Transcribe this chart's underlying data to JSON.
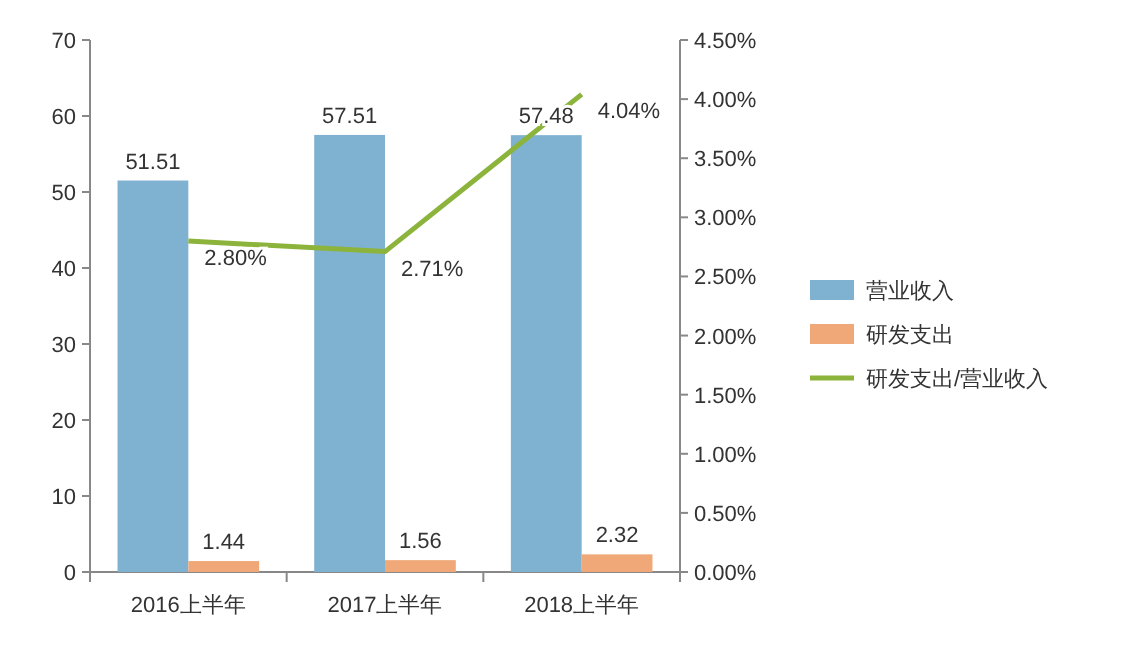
{
  "chart_data": {
    "type": "bar",
    "categories": [
      "2016上半年",
      "2017上半年",
      "2018上半年"
    ],
    "series": [
      {
        "name": "营业收入",
        "color": "#7fb2d1",
        "values": [
          51.51,
          57.51,
          57.48
        ],
        "value_labels": [
          "51.51",
          "57.51",
          "57.48"
        ]
      },
      {
        "name": "研发支出",
        "color": "#f0a878",
        "values": [
          1.44,
          1.56,
          2.32
        ],
        "value_labels": [
          "1.44",
          "1.56",
          "2.32"
        ]
      },
      {
        "name": "研发支出/营业收入",
        "type": "line",
        "axis": "y2",
        "color": "#8cb43c",
        "values": [
          2.8,
          2.71,
          4.04
        ],
        "value_labels": [
          "2.80%",
          "2.71%",
          "4.04%"
        ]
      }
    ],
    "ylim": [
      0,
      70
    ],
    "yticks": [
      0,
      10,
      20,
      30,
      40,
      50,
      60,
      70
    ],
    "y2lim": [
      0,
      4.5
    ],
    "y2ticks": [
      {
        "value": 0,
        "label": "0.00%"
      },
      {
        "value": 0.5,
        "label": "0.50%"
      },
      {
        "value": 1,
        "label": "1.00%"
      },
      {
        "value": 1.5,
        "label": "1.50%"
      },
      {
        "value": 2,
        "label": "2.00%"
      },
      {
        "value": 2.5,
        "label": "2.50%"
      },
      {
        "value": 3,
        "label": "3.00%"
      },
      {
        "value": 3.5,
        "label": "3.50%"
      },
      {
        "value": 4,
        "label": "4.00%"
      },
      {
        "value": 4.5,
        "label": "4.50%"
      }
    ],
    "legend": "right"
  }
}
